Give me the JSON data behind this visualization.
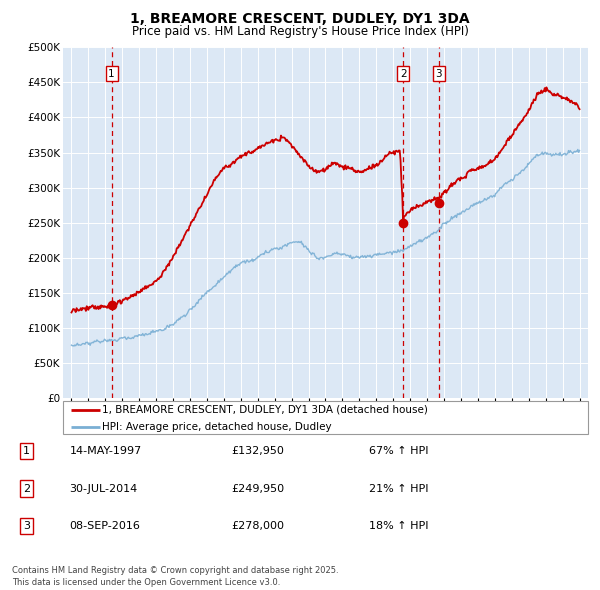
{
  "title_line1": "1, BREAMORE CRESCENT, DUDLEY, DY1 3DA",
  "title_line2": "Price paid vs. HM Land Registry's House Price Index (HPI)",
  "plot_bg_color": "#dce8f5",
  "sale_color": "#cc0000",
  "hpi_color": "#7aafd4",
  "ylim": [
    0,
    500000
  ],
  "yticks": [
    0,
    50000,
    100000,
    150000,
    200000,
    250000,
    300000,
    350000,
    400000,
    450000,
    500000
  ],
  "ytick_labels": [
    "£0",
    "£50K",
    "£100K",
    "£150K",
    "£200K",
    "£250K",
    "£300K",
    "£350K",
    "£400K",
    "£450K",
    "£500K"
  ],
  "sales": [
    {
      "date_num": 1997.37,
      "price": 132950,
      "label": "1"
    },
    {
      "date_num": 2014.58,
      "price": 249950,
      "label": "2"
    },
    {
      "date_num": 2016.69,
      "price": 278000,
      "label": "3"
    }
  ],
  "legend_sale_label": "1, BREAMORE CRESCENT, DUDLEY, DY1 3DA (detached house)",
  "legend_hpi_label": "HPI: Average price, detached house, Dudley",
  "table_rows": [
    {
      "num": "1",
      "date": "14-MAY-1997",
      "price": "£132,950",
      "info": "67% ↑ HPI"
    },
    {
      "num": "2",
      "date": "30-JUL-2014",
      "price": "£249,950",
      "info": "21% ↑ HPI"
    },
    {
      "num": "3",
      "date": "08-SEP-2016",
      "price": "£278,000",
      "info": "18% ↑ HPI"
    }
  ],
  "footer": "Contains HM Land Registry data © Crown copyright and database right 2025.\nThis data is licensed under the Open Government Licence v3.0.",
  "xlim": [
    1994.5,
    2025.5
  ],
  "xtick_years": [
    1995,
    1996,
    1997,
    1998,
    1999,
    2000,
    2001,
    2002,
    2003,
    2004,
    2005,
    2006,
    2007,
    2008,
    2009,
    2010,
    2011,
    2012,
    2013,
    2014,
    2015,
    2016,
    2017,
    2018,
    2019,
    2020,
    2021,
    2022,
    2023,
    2024,
    2025
  ]
}
